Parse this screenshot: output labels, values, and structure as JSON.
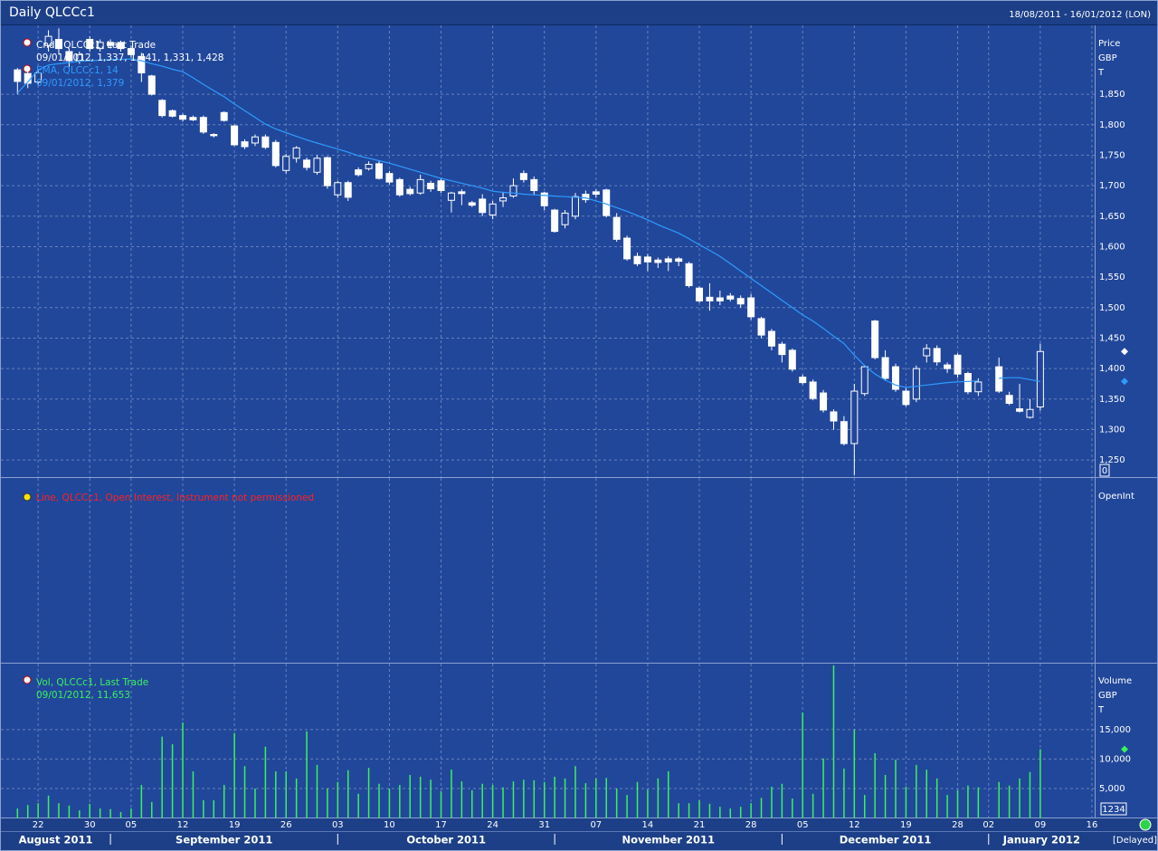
{
  "header": {
    "title": "Daily QLCCc1",
    "range": "18/08/2011 - 16/01/2012 (LON)",
    "status": "[Delayed]"
  },
  "x_axis": {
    "x": [
      "2011-08-18",
      "2011-08-19",
      "2011-08-22",
      "2011-08-23",
      "2011-08-24",
      "2011-08-25",
      "2011-08-26",
      "2011-08-30",
      "2011-08-31",
      "2011-09-01",
      "2011-09-02",
      "2011-09-05",
      "2011-09-06",
      "2011-09-07",
      "2011-09-08",
      "2011-09-09",
      "2011-09-12",
      "2011-09-13",
      "2011-09-14",
      "2011-09-15",
      "2011-09-16",
      "2011-09-19",
      "2011-09-20",
      "2011-09-21",
      "2011-09-22",
      "2011-09-23",
      "2011-09-26",
      "2011-09-27",
      "2011-09-28",
      "2011-09-29",
      "2011-09-30",
      "2011-10-03",
      "2011-10-04",
      "2011-10-05",
      "2011-10-06",
      "2011-10-07",
      "2011-10-10",
      "2011-10-11",
      "2011-10-12",
      "2011-10-13",
      "2011-10-14",
      "2011-10-17",
      "2011-10-18",
      "2011-10-19",
      "2011-10-20",
      "2011-10-21",
      "2011-10-24",
      "2011-10-25",
      "2011-10-26",
      "2011-10-27",
      "2011-10-28",
      "2011-10-31",
      "2011-11-01",
      "2011-11-02",
      "2011-11-03",
      "2011-11-04",
      "2011-11-07",
      "2011-11-08",
      "2011-11-09",
      "2011-11-10",
      "2011-11-11",
      "2011-11-14",
      "2011-11-15",
      "2011-11-16",
      "2011-11-17",
      "2011-11-18",
      "2011-11-21",
      "2011-11-22",
      "2011-11-23",
      "2011-11-24",
      "2011-11-25",
      "2011-11-28",
      "2011-11-29",
      "2011-11-30",
      "2011-12-01",
      "2011-12-02",
      "2011-12-05",
      "2011-12-06",
      "2011-12-07",
      "2011-12-08",
      "2011-12-09",
      "2011-12-12",
      "2011-12-13",
      "2011-12-14",
      "2011-12-15",
      "2011-12-16",
      "2011-12-19",
      "2011-12-20",
      "2011-12-21",
      "2011-12-22",
      "2011-12-23",
      "2011-12-28",
      "2011-12-29",
      "2011-12-30",
      "2012-01-02",
      "2012-01-03",
      "2012-01-04",
      "2012-01-05",
      "2012-01-06",
      "2012-01-09"
    ],
    "xticks": [
      {
        "value": "2011-08-22",
        "label": "22"
      },
      {
        "value": "2011-08-30",
        "label": "30"
      },
      {
        "value": "2011-09-05",
        "label": "05"
      },
      {
        "value": "2011-09-12",
        "label": "12"
      },
      {
        "value": "2011-09-19",
        "label": "19"
      },
      {
        "value": "2011-09-26",
        "label": "26"
      },
      {
        "value": "2011-10-03",
        "label": "03"
      },
      {
        "value": "2011-10-10",
        "label": "10"
      },
      {
        "value": "2011-10-17",
        "label": "17"
      },
      {
        "value": "2011-10-24",
        "label": "24"
      },
      {
        "value": "2011-10-31",
        "label": "31"
      },
      {
        "value": "2011-11-07",
        "label": "07"
      },
      {
        "value": "2011-11-14",
        "label": "14"
      },
      {
        "value": "2011-11-21",
        "label": "21"
      },
      {
        "value": "2011-11-28",
        "label": "28"
      },
      {
        "value": "2011-12-05",
        "label": "05"
      },
      {
        "value": "2011-12-12",
        "label": "12"
      },
      {
        "value": "2011-12-19",
        "label": "19"
      },
      {
        "value": "2011-12-28",
        "label": "28"
      },
      {
        "value": "2012-01-02",
        "label": "02"
      },
      {
        "value": "2012-01-09",
        "label": "09"
      },
      {
        "value": "2012-01-16",
        "label": "16"
      }
    ],
    "months": [
      {
        "value": "2011-08",
        "label": "August 2011"
      },
      {
        "value": "2011-09",
        "label": "September 2011"
      },
      {
        "value": "2011-10",
        "label": "October 2011"
      },
      {
        "value": "2011-11",
        "label": "November 2011"
      },
      {
        "value": "2011-12",
        "label": "December 2011"
      },
      {
        "value": "2012-01",
        "label": "January 2012"
      }
    ]
  },
  "chart_data": [
    {
      "type": "candlestick",
      "legend": [
        "Cndl, QLCCc1, Last Trade",
        "09/01/2012, 1,337, 1,441, 1,331, 1,428"
      ],
      "axis_labels": [
        "Price",
        "GBP",
        "T"
      ],
      "box": "0",
      "color": "#ffffff",
      "grid": true,
      "open": [
        1890,
        1884,
        1870,
        1930,
        1940,
        1920,
        1905,
        1940,
        1925,
        1935,
        1935,
        1925,
        1912,
        1880,
        1840,
        1823,
        1815,
        1812,
        1812,
        1784,
        1820,
        1798,
        1772,
        1770,
        1780,
        1771,
        1725,
        1745,
        1742,
        1722,
        1746,
        1685,
        1705,
        1726,
        1728,
        1736,
        1720,
        1710,
        1694,
        1688,
        1704,
        1708,
        1676,
        1690,
        1672,
        1678,
        1652,
        1675,
        1683,
        1720,
        1710,
        1688,
        1660,
        1636,
        1650,
        1686,
        1690,
        1693,
        1648,
        1614,
        1584,
        1583,
        1578,
        1580,
        1580,
        1572,
        1532,
        1517,
        1516,
        1519,
        1515,
        1516,
        1482,
        1461,
        1440,
        1430,
        1386,
        1378,
        1360,
        1329,
        1313,
        1277,
        1359,
        1478,
        1418,
        1403,
        1363,
        1350,
        1421,
        1433,
        1406,
        1422,
        1392,
        1362,
        null,
        1403,
        1356,
        1334,
        1320,
        1337
      ],
      "high": [
        1893,
        1888,
        1890,
        1955,
        1958,
        1925,
        1920,
        1945,
        1940,
        1940,
        1938,
        1930,
        1918,
        1882,
        1842,
        1825,
        1818,
        1815,
        1815,
        1786,
        1822,
        1800,
        1776,
        1784,
        1784,
        1775,
        1752,
        1765,
        1746,
        1750,
        1748,
        1708,
        1708,
        1730,
        1740,
        1740,
        1724,
        1713,
        1698,
        1718,
        1708,
        1712,
        1690,
        1694,
        1675,
        1686,
        1675,
        1690,
        1712,
        1725,
        1715,
        1690,
        1662,
        1660,
        1688,
        1692,
        1694,
        1695,
        1655,
        1618,
        1590,
        1588,
        1582,
        1584,
        1583,
        1575,
        1535,
        1540,
        1528,
        1524,
        1520,
        1522,
        1485,
        1465,
        1444,
        1433,
        1390,
        1382,
        1365,
        1333,
        1322,
        1375,
        1406,
        1480,
        1430,
        1408,
        1368,
        1405,
        1440,
        1438,
        1410,
        1425,
        1395,
        1384,
        null,
        1418,
        1362,
        1375,
        1350,
        1441
      ],
      "low": [
        1850,
        1860,
        1866,
        1920,
        1915,
        1895,
        1900,
        1920,
        1920,
        1925,
        1920,
        1910,
        1870,
        1848,
        1812,
        1812,
        1805,
        1806,
        1785,
        1779,
        1805,
        1765,
        1760,
        1765,
        1760,
        1730,
        1720,
        1738,
        1725,
        1718,
        1695,
        1680,
        1675,
        1715,
        1725,
        1710,
        1702,
        1682,
        1684,
        1685,
        1690,
        1688,
        1656,
        1668,
        1665,
        1650,
        1645,
        1665,
        1680,
        1705,
        1685,
        1660,
        1623,
        1630,
        1645,
        1672,
        1680,
        1648,
        1608,
        1577,
        1568,
        1560,
        1565,
        1560,
        1568,
        1533,
        1508,
        1495,
        1504,
        1510,
        1500,
        1480,
        1450,
        1430,
        1410,
        1395,
        1374,
        1348,
        1328,
        1300,
        1274,
        1225,
        1355,
        1415,
        1380,
        1362,
        1338,
        1345,
        1410,
        1405,
        1393,
        1385,
        1358,
        1355,
        null,
        1360,
        1340,
        1328,
        1318,
        1331
      ],
      "close": [
        1871,
        1868,
        1885,
        1945,
        1925,
        1905,
        1915,
        1925,
        1935,
        1930,
        1925,
        1915,
        1885,
        1850,
        1815,
        1814,
        1809,
        1808,
        1788,
        1782,
        1807,
        1767,
        1764,
        1780,
        1763,
        1733,
        1748,
        1762,
        1730,
        1745,
        1700,
        1705,
        1681,
        1718,
        1735,
        1712,
        1706,
        1685,
        1687,
        1710,
        1695,
        1692,
        1688,
        1687,
        1668,
        1656,
        1670,
        1680,
        1700,
        1710,
        1692,
        1667,
        1625,
        1655,
        1682,
        1677,
        1686,
        1651,
        1612,
        1580,
        1572,
        1575,
        1574,
        1575,
        1576,
        1536,
        1511,
        1511,
        1511,
        1514,
        1506,
        1485,
        1455,
        1437,
        1423,
        1399,
        1377,
        1351,
        1332,
        1314,
        1277,
        1363,
        1403,
        1418,
        1384,
        1366,
        1341,
        1400,
        1433,
        1411,
        1400,
        1391,
        1362,
        1378,
        null,
        1363,
        1343,
        1330,
        1333,
        1428
      ],
      "ema": {
        "legend": [
          "EMA, QLCCc1, 14",
          "09/01/2012, 1,379"
        ],
        "color": "#2e9bff",
        "values": [
          1852,
          1870,
          1890,
          1898,
          1900,
          1902,
          1904,
          1905,
          1906,
          1907,
          1907,
          1908,
          1905,
          1900,
          1896,
          1891,
          1887,
          1877,
          1866,
          1856,
          1846,
          1834,
          1823,
          1812,
          1801,
          1793,
          1787,
          1781,
          1775,
          1770,
          1765,
          1760,
          1755,
          1749,
          1745,
          1741,
          1737,
          1732,
          1727,
          1722,
          1717,
          1712,
          1708,
          1704,
          1700,
          1696,
          1691,
          1689,
          1688,
          1686,
          1685,
          1684,
          1683,
          1682,
          1681,
          1680,
          1675,
          1670,
          1664,
          1658,
          1651,
          1644,
          1636,
          1629,
          1622,
          1613,
          1603,
          1594,
          1584,
          1572,
          1560,
          1548,
          1536,
          1524,
          1512,
          1500,
          1488,
          1478,
          1466,
          1453,
          1441,
          1422,
          1405,
          1391,
          1381,
          1373,
          1369,
          1371,
          1373,
          1375,
          1377,
          1378,
          1379,
          1380,
          null,
          1384,
          1385,
          1385,
          1382,
          1379
        ]
      },
      "ylim": [
        1222,
        1963
      ],
      "yticks": [
        {
          "value": 1250,
          "label": "1,250"
        },
        {
          "value": 1300,
          "label": "1,300"
        },
        {
          "value": 1350,
          "label": "1,350"
        },
        {
          "value": 1400,
          "label": "1,400"
        },
        {
          "value": 1450,
          "label": "1,450"
        },
        {
          "value": 1500,
          "label": "1,500"
        },
        {
          "value": 1550,
          "label": "1,550"
        },
        {
          "value": 1600,
          "label": "1,600"
        },
        {
          "value": 1650,
          "label": "1,650"
        },
        {
          "value": 1700,
          "label": "1,700"
        },
        {
          "value": 1750,
          "label": "1,750"
        },
        {
          "value": 1800,
          "label": "1,800"
        },
        {
          "value": 1850,
          "label": "1,850"
        }
      ]
    },
    {
      "type": "line",
      "message": "Line, QLCCc1, Open Interest, Instrument not permissioned",
      "axis_labels": [
        "OpenInt"
      ],
      "color": "#ff2020",
      "grid": true
    },
    {
      "type": "bar",
      "legend": [
        "Vol, QLCCc1, Last Trade",
        "09/01/2012, 11,653"
      ],
      "axis_labels": [
        "Volume",
        "GBP",
        "T"
      ],
      "box": "1234",
      "color": "#3cf060",
      "grid": true,
      "values": [
        1600,
        2200,
        2500,
        3800,
        2500,
        2100,
        1300,
        2400,
        1600,
        1500,
        1000,
        1600,
        5600,
        2700,
        13800,
        12500,
        16200,
        7900,
        3000,
        3000,
        5600,
        14400,
        8800,
        5000,
        12100,
        7900,
        7900,
        6700,
        14700,
        9000,
        5000,
        6100,
        8100,
        4100,
        8500,
        5800,
        5000,
        5600,
        7300,
        7000,
        6500,
        4500,
        8200,
        6200,
        4700,
        5800,
        5600,
        5200,
        6200,
        6500,
        6400,
        6100,
        7000,
        6700,
        8800,
        5900,
        6700,
        6800,
        5000,
        3900,
        6100,
        4800,
        6700,
        7900,
        2500,
        2500,
        3000,
        2400,
        1900,
        1600,
        1900,
        2500,
        3400,
        5300,
        5800,
        3300,
        17900,
        4100,
        10100,
        25900,
        8400,
        15000,
        3900,
        11000,
        7300,
        9900,
        5300,
        9000,
        8200,
        6700,
        3900,
        4700,
        5500,
        5200,
        null,
        6100,
        5500,
        6700,
        7800,
        11653
      ],
      "ylim": [
        0,
        26200
      ],
      "yticks": [
        {
          "value": 5000,
          "label": "5,000"
        },
        {
          "value": 10000,
          "label": "10,000"
        },
        {
          "value": 15000,
          "label": "15,000"
        }
      ]
    }
  ]
}
